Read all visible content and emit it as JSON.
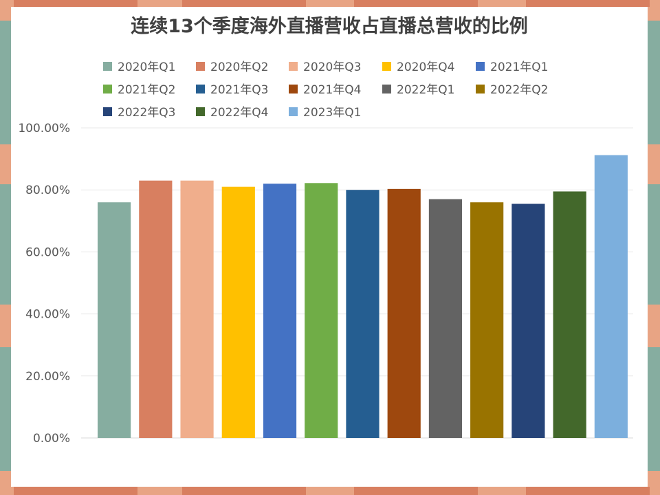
{
  "chart_data": {
    "type": "bar",
    "title": "连续13个季度海外直播营收占直播总营收的比例",
    "xlabel": "",
    "ylabel": "",
    "ylim": [
      0,
      1
    ],
    "yticks": [
      "0.00%",
      "20.00%",
      "40.00%",
      "60.00%",
      "80.00%",
      "100.00%"
    ],
    "grid": true,
    "legend_position": "top",
    "series": [
      {
        "name": "2020年Q1",
        "value": 0.76,
        "color": "#86ada0"
      },
      {
        "name": "2020年Q2",
        "value": 0.83,
        "color": "#d87f60"
      },
      {
        "name": "2020年Q3",
        "value": 0.83,
        "color": "#f0ae8c"
      },
      {
        "name": "2020年Q4",
        "value": 0.81,
        "color": "#ffc000"
      },
      {
        "name": "2021年Q1",
        "value": 0.82,
        "color": "#4472c4"
      },
      {
        "name": "2021年Q2",
        "value": 0.822,
        "color": "#70ad47"
      },
      {
        "name": "2021年Q3",
        "value": 0.8,
        "color": "#255e91"
      },
      {
        "name": "2021年Q4",
        "value": 0.803,
        "color": "#9e480e"
      },
      {
        "name": "2022年Q1",
        "value": 0.77,
        "color": "#636363"
      },
      {
        "name": "2022年Q2",
        "value": 0.76,
        "color": "#997300"
      },
      {
        "name": "2022年Q3",
        "value": 0.755,
        "color": "#264478"
      },
      {
        "name": "2022年Q4",
        "value": 0.795,
        "color": "#43682b"
      },
      {
        "name": "2023年Q1",
        "value": 0.912,
        "color": "#7cafdd"
      }
    ]
  },
  "frame": {
    "border_color": "#e8a484",
    "stripe_colors": [
      "#86ada0",
      "#d87f60"
    ]
  }
}
